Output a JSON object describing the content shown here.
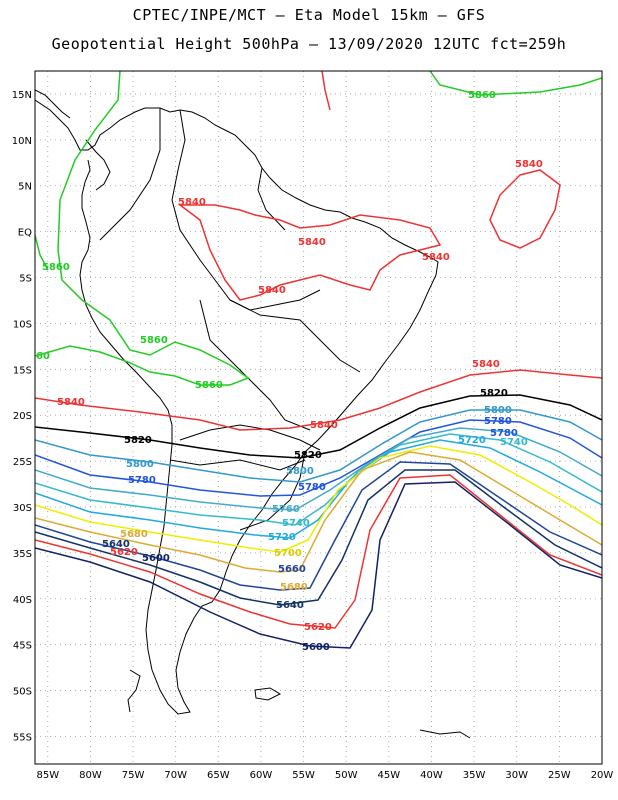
{
  "title": {
    "line1": "CPTEC/INPE/MCT –  Eta Model 15km – GFS",
    "line2": "Geopotential Height 500hPa – 13/09/2020 12UTC fct=259h"
  },
  "axes": {
    "lat_labels": [
      "15N",
      "10N",
      "5N",
      "EQ",
      "5S",
      "10S",
      "15S",
      "20S",
      "25S",
      "30S",
      "35S",
      "40S",
      "45S",
      "50S",
      "55S"
    ],
    "lon_labels": [
      "85W",
      "80W",
      "75W",
      "70W",
      "65W",
      "60W",
      "55W",
      "50W",
      "45W",
      "40W",
      "35W",
      "30W",
      "25W",
      "20W"
    ],
    "lat_range": [
      17.5,
      -58
    ],
    "lon_range": [
      -86.5,
      -20
    ],
    "grid": "dotted"
  },
  "contours": [
    {
      "level": "5860",
      "color": "#22cc22",
      "labels": [
        "5860",
        "5860",
        "5860",
        "5860",
        "60"
      ]
    },
    {
      "level": "5840",
      "color": "#ee3333",
      "labels": [
        "5840",
        "5840",
        "5840",
        "5840",
        "5840",
        "5840",
        "5840",
        "5840"
      ]
    },
    {
      "level": "5820",
      "color": "#000000",
      "labels": [
        "5820",
        "5820",
        "5820"
      ]
    },
    {
      "level": "5800",
      "color": "#3399cc",
      "labels": [
        "5800",
        "5800",
        "5800"
      ]
    },
    {
      "level": "5780",
      "color": "#2255dd",
      "labels": [
        "5780",
        "5780",
        "5780",
        "5780"
      ]
    },
    {
      "level": "5760",
      "color": "#44aacc",
      "labels": [
        "5760"
      ]
    },
    {
      "level": "5740",
      "color": "#33bbcc",
      "labels": [
        "5740",
        "5740"
      ]
    },
    {
      "level": "5720",
      "color": "#22aadd",
      "labels": [
        "5720",
        "5720"
      ]
    },
    {
      "level": "5700",
      "color": "#eeee00",
      "labels": [
        "5700"
      ]
    },
    {
      "level": "5680",
      "color": "#ddaa33",
      "labels": [
        "5680",
        "5680"
      ]
    },
    {
      "level": "5660",
      "color": "#224499",
      "labels": [
        "5660"
      ]
    },
    {
      "level": "5640",
      "color": "#113366",
      "labels": [
        "5640",
        "5640"
      ]
    },
    {
      "level": "5620",
      "color": "#ee3333",
      "labels": [
        "5620",
        "5620"
      ]
    },
    {
      "level": "5600",
      "color": "#112266",
      "labels": [
        "5600",
        "5600"
      ]
    }
  ]
}
